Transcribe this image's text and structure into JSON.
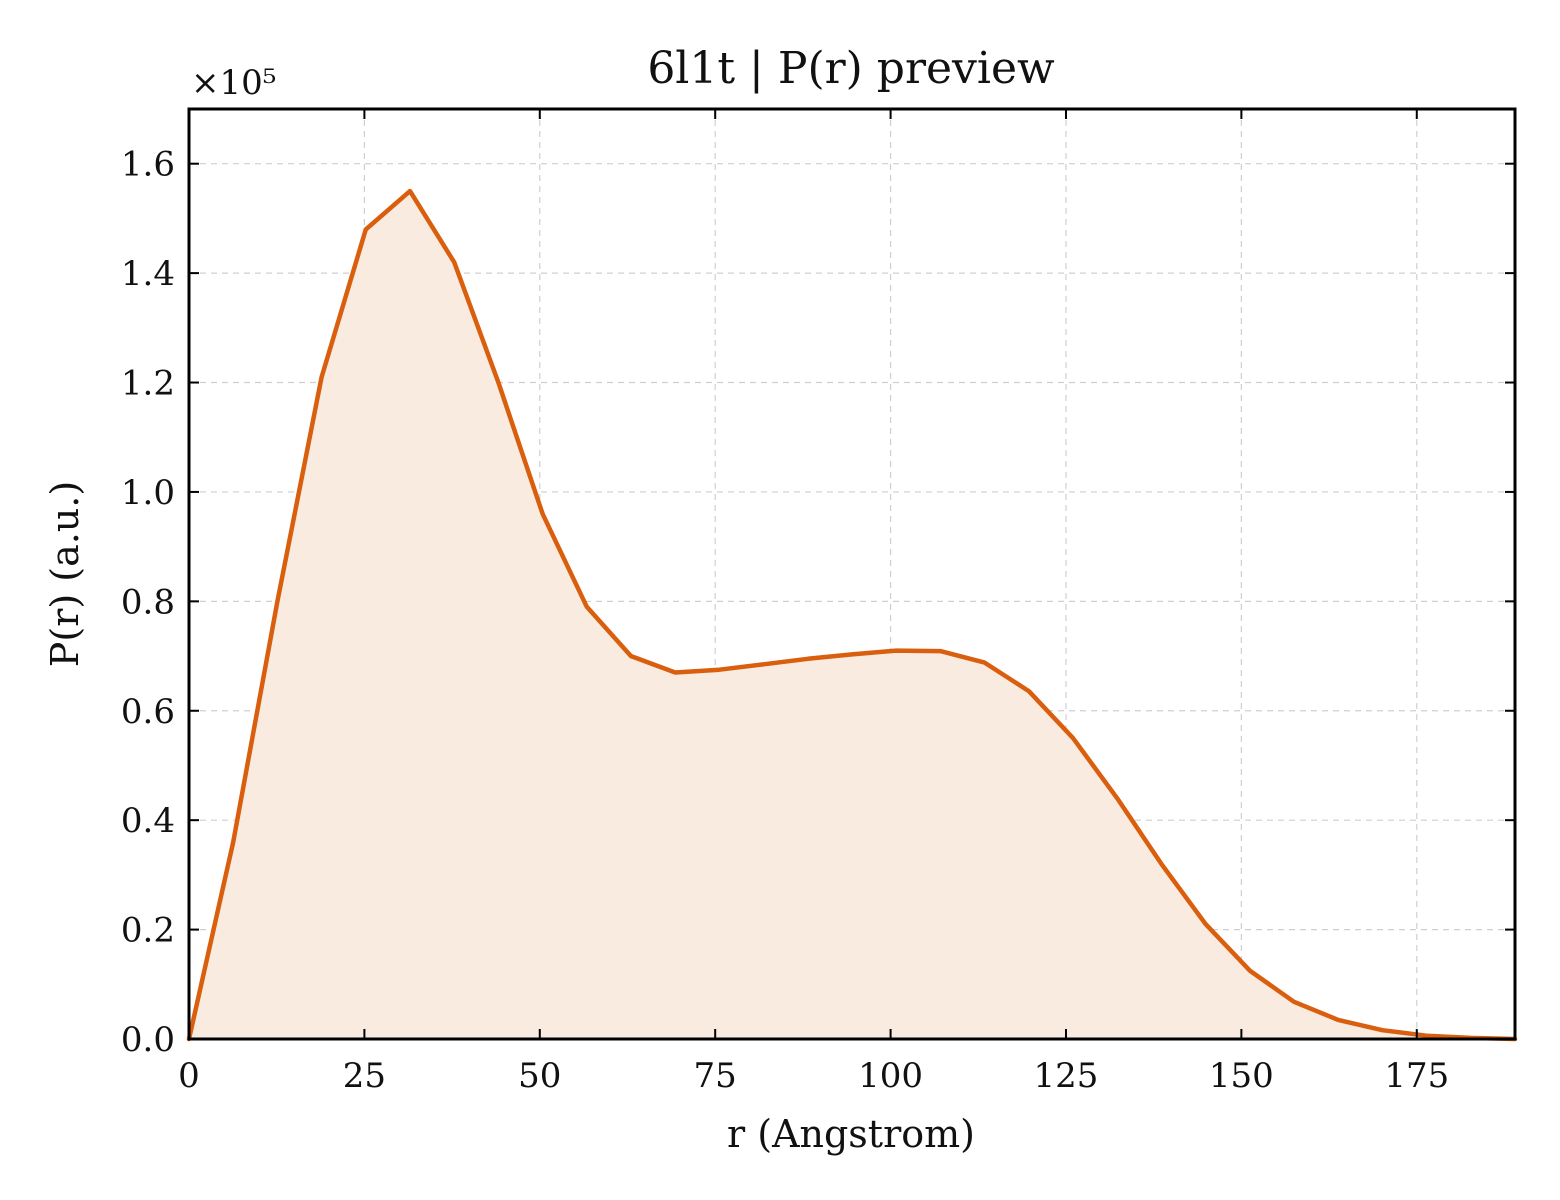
{
  "chart_data": {
    "type": "area",
    "title": "6l1t | P(r) preview",
    "xlabel": "r (Angstrom)",
    "ylabel": "P(r) (a.u.)",
    "y_offset_label": "×10⁵",
    "xlim": [
      0,
      189
    ],
    "ylim": [
      0,
      1.7
    ],
    "x_ticks": [
      0,
      25,
      50,
      75,
      100,
      125,
      150,
      175
    ],
    "x_tick_labels": [
      "0",
      "25",
      "50",
      "75",
      "100",
      "125",
      "150",
      "175"
    ],
    "y_ticks": [
      0,
      0.2,
      0.4,
      0.6,
      0.8,
      1.0,
      1.2,
      1.4,
      1.6
    ],
    "y_tick_labels": [
      "0.0",
      "0.2",
      "0.4",
      "0.6",
      "0.8",
      "1.0",
      "1.2",
      "1.4",
      "1.6"
    ],
    "grid": true,
    "line_color": "#d95f0e",
    "fill_color": "#f9ebe0",
    "series": [
      {
        "x": [
          0,
          6.3,
          12.6,
          18.9,
          25.2,
          31.5,
          37.8,
          44.1,
          50.4,
          56.7,
          63.0,
          69.3,
          75.6,
          81.9,
          88.2,
          94.5,
          100.8,
          107.1,
          113.4,
          119.7,
          126.0,
          132.3,
          138.6,
          144.9,
          151.2,
          157.5,
          163.8,
          170.1,
          176.4,
          182.7,
          189.0
        ],
        "y": [
          0.0,
          0.36,
          0.8,
          1.21,
          1.48,
          1.55,
          1.42,
          1.2,
          0.96,
          0.79,
          0.7,
          0.67,
          0.675,
          0.685,
          0.695,
          0.703,
          0.71,
          0.709,
          0.688,
          0.636,
          0.55,
          0.44,
          0.32,
          0.21,
          0.125,
          0.068,
          0.035,
          0.016,
          0.006,
          0.002,
          0.0
        ]
      }
    ]
  }
}
